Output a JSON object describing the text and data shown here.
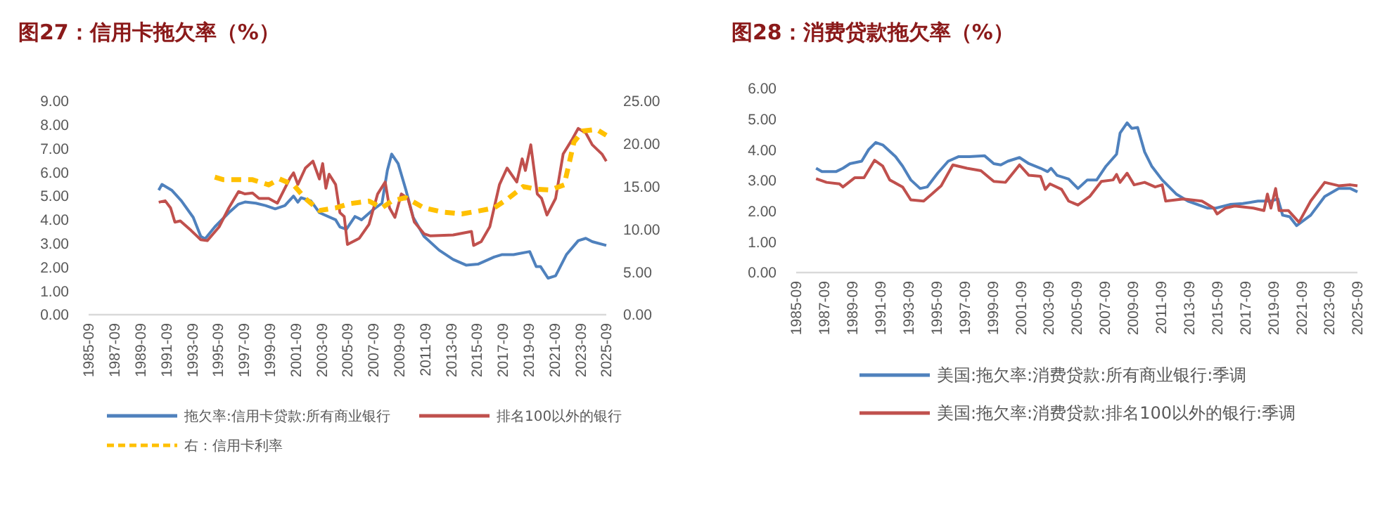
{
  "chart_data": [
    {
      "type": "line",
      "title": "图27：信用卡拖欠率（%）",
      "xlim": [
        "1985-09",
        "2025-09"
      ],
      "xticks": [
        "1985-09",
        "1987-09",
        "1989-09",
        "1991-09",
        "1993-09",
        "1995-09",
        "1997-09",
        "1999-09",
        "2001-09",
        "2003-09",
        "2005-09",
        "2007-09",
        "2009-09",
        "2011-09",
        "2013-09",
        "2015-09",
        "2017-09",
        "2019-09",
        "2021-09",
        "2023-09",
        "2025-09"
      ],
      "ylim": [
        0,
        9
      ],
      "yticks": [
        {
          "value": 0,
          "label": "0.00"
        },
        {
          "value": 1,
          "label": "1.00"
        },
        {
          "value": 2,
          "label": "2.00"
        },
        {
          "value": 3,
          "label": "3.00"
        },
        {
          "value": 4,
          "label": "4.00"
        },
        {
          "value": 5,
          "label": "5.00"
        },
        {
          "value": 6,
          "label": "6.00"
        },
        {
          "value": 7,
          "label": "7.00"
        },
        {
          "value": 8,
          "label": "8.00"
        },
        {
          "value": 9,
          "label": "9.00"
        }
      ],
      "y2lim": [
        0,
        25
      ],
      "y2ticks": [
        {
          "value": 0,
          "label": "0.00"
        },
        {
          "value": 5,
          "label": "5.00"
        },
        {
          "value": 10,
          "label": "10.00"
        },
        {
          "value": 15,
          "label": "15.00"
        },
        {
          "value": 20,
          "label": "20.00"
        },
        {
          "value": 25,
          "label": "25.00"
        }
      ],
      "grid": false,
      "legend": "bottom",
      "series": [
        {
          "name": "拖欠率:信用卡贷款:所有商业银行",
          "color": "#4f81bd",
          "x": [
            "1991-02",
            "1991-05",
            "1992-02",
            "1992-11",
            "1993-10",
            "1994-05",
            "1994-09",
            "1995-06",
            "1996-07",
            "1997-04",
            "1997-10",
            "1998-08",
            "1999-05",
            "2000-02",
            "2000-11",
            "2001-07",
            "2001-11",
            "2002-02",
            "2002-11",
            "2003-07",
            "2004-10",
            "2005-02",
            "2005-08",
            "2006-04",
            "2006-10",
            "2007-08",
            "2008-05",
            "2008-10",
            "2009-02",
            "2009-08",
            "2010-03",
            "2010-10",
            "2011-08",
            "2012-10",
            "2013-11",
            "2014-11",
            "2015-10",
            "2017-01",
            "2017-08",
            "2018-07",
            "2019-10",
            "2020-04",
            "2020-08",
            "2021-03",
            "2021-10",
            "2022-08",
            "2023-07",
            "2024-02",
            "2024-08",
            "2025-09"
          ],
          "values": [
            5.25,
            5.49,
            5.25,
            4.8,
            4.1,
            3.3,
            3.2,
            3.7,
            4.3,
            4.66,
            4.75,
            4.7,
            4.6,
            4.46,
            4.6,
            5.0,
            4.74,
            4.93,
            4.8,
            4.3,
            4.0,
            3.7,
            3.6,
            4.14,
            4.0,
            4.4,
            4.7,
            6.08,
            6.77,
            6.37,
            5.29,
            4.1,
            3.3,
            2.72,
            2.33,
            2.09,
            2.13,
            2.43,
            2.53,
            2.53,
            2.66,
            2.03,
            2.03,
            1.54,
            1.64,
            2.53,
            3.12,
            3.22,
            3.08,
            2.92
          ]
        },
        {
          "name": "排名100以外的银行",
          "color": "#c0504d",
          "x": [
            "1991-02",
            "1991-08",
            "1992-01",
            "1992-05",
            "1992-10",
            "1993-08",
            "1994-05",
            "1994-11",
            "1995-10",
            "1996-07",
            "1997-04",
            "1997-10",
            "1998-05",
            "1998-11",
            "1999-08",
            "2000-04",
            "2001-04",
            "2001-07",
            "2001-11",
            "2002-06",
            "2003-01",
            "2003-07",
            "2003-10",
            "2004-01",
            "2004-04",
            "2004-10",
            "2005-02",
            "2005-06",
            "2005-09",
            "2006-08",
            "2007-05",
            "2008-01",
            "2008-08",
            "2008-12",
            "2009-05",
            "2009-11",
            "2010-05",
            "2010-11",
            "2011-08",
            "2012-02",
            "2013-11",
            "2015-04",
            "2015-06",
            "2016-01",
            "2016-09",
            "2017-06",
            "2018-01",
            "2018-10",
            "2019-03",
            "2019-06",
            "2019-11",
            "2020-05",
            "2020-09",
            "2021-02",
            "2021-10",
            "2022-05",
            "2023-01",
            "2023-07",
            "2024-02",
            "2024-08",
            "2025-05",
            "2025-09"
          ],
          "values": [
            4.74,
            4.8,
            4.5,
            3.9,
            3.95,
            3.55,
            3.16,
            3.12,
            3.7,
            4.5,
            5.19,
            5.09,
            5.13,
            4.9,
            4.9,
            4.7,
            5.78,
            5.98,
            5.49,
            6.18,
            6.47,
            5.72,
            6.37,
            5.33,
            5.92,
            5.49,
            4.3,
            4.14,
            2.96,
            3.22,
            3.81,
            5.09,
            5.59,
            4.5,
            4.1,
            5.09,
            4.9,
            3.91,
            3.41,
            3.32,
            3.36,
            3.51,
            2.92,
            3.08,
            3.71,
            5.49,
            6.18,
            5.59,
            6.57,
            6.08,
            7.16,
            5.09,
            4.9,
            4.2,
            4.9,
            6.77,
            7.36,
            7.85,
            7.66,
            7.16,
            6.77,
            6.47
          ]
        },
        {
          "name": "右：信用卡利率",
          "color": "#ffc000",
          "axis": "y2",
          "line_style": "dashed",
          "x": [
            "1995-06",
            "1996-02",
            "1997-04",
            "1998-05",
            "1999-08",
            "2000-06",
            "2001-07",
            "2002-06",
            "2003-07",
            "2004-10",
            "2005-11",
            "2007-05",
            "2008-05",
            "2009-02",
            "2010-03",
            "2011-08",
            "2013-02",
            "2014-07",
            "2016-01",
            "2017-01",
            "2018-02",
            "2019-04",
            "2020-04",
            "2021-05",
            "2022-06",
            "2023-03",
            "2023-11",
            "2024-12",
            "2025-09"
          ],
          "values": [
            16.1,
            15.8,
            15.8,
            15.8,
            15.2,
            15.9,
            15.2,
            13.6,
            12.2,
            12.5,
            13.0,
            13.3,
            12.5,
            13.3,
            13.7,
            12.5,
            12.0,
            11.8,
            12.2,
            12.5,
            13.6,
            15.0,
            14.7,
            14.6,
            15.2,
            20.2,
            21.5,
            21.7,
            21.0
          ]
        }
      ]
    },
    {
      "type": "line",
      "title": "图28：消费贷款拖欠率（%）",
      "xlim": [
        "1985-09",
        "2025-09"
      ],
      "xticks": [
        "1985-09",
        "1987-09",
        "1989-09",
        "1991-09",
        "1993-09",
        "1995-09",
        "1997-09",
        "1999-09",
        "2001-09",
        "2003-09",
        "2005-09",
        "2007-09",
        "2009-09",
        "2011-09",
        "2013-09",
        "2015-09",
        "2017-09",
        "2019-09",
        "2021-09",
        "2023-09",
        "2025-09"
      ],
      "ylim": [
        0,
        6
      ],
      "yticks": [
        {
          "value": 0,
          "label": "0.00"
        },
        {
          "value": 1,
          "label": "1.00"
        },
        {
          "value": 2,
          "label": "2.00"
        },
        {
          "value": 3,
          "label": "3.00"
        },
        {
          "value": 4,
          "label": "4.00"
        },
        {
          "value": 5,
          "label": "5.00"
        },
        {
          "value": 6,
          "label": "6.00"
        }
      ],
      "grid": false,
      "legend": "bottom",
      "series": [
        {
          "name": "美国:拖欠率:消费贷款:所有商业银行:季调",
          "color": "#4f81bd",
          "x": [
            "1987-02",
            "1987-07",
            "1988-07",
            "1989-01",
            "1989-07",
            "1990-05",
            "1990-11",
            "1991-05",
            "1991-11",
            "1992-10",
            "1993-04",
            "1993-11",
            "1994-07",
            "1995-01",
            "1995-10",
            "1996-07",
            "1997-04",
            "1998-01",
            "1999-02",
            "1999-10",
            "2000-04",
            "2000-10",
            "2001-08",
            "2002-04",
            "2003-02",
            "2003-08",
            "2003-11",
            "2004-04",
            "2005-02",
            "2005-10",
            "2006-06",
            "2007-02",
            "2007-10",
            "2008-07",
            "2008-10",
            "2009-04",
            "2009-08",
            "2010-01",
            "2010-07",
            "2011-01",
            "2011-10",
            "2012-10",
            "2013-08",
            "2015-01",
            "2015-08",
            "2016-08",
            "2017-07",
            "2018-08",
            "2019-07",
            "2020-01",
            "2020-05",
            "2020-11",
            "2021-05",
            "2022-05",
            "2023-05",
            "2024-05",
            "2025-03",
            "2025-09"
          ],
          "values": [
            3.4,
            3.29,
            3.29,
            3.4,
            3.55,
            3.63,
            4.01,
            4.24,
            4.16,
            3.78,
            3.47,
            3.02,
            2.74,
            2.79,
            3.24,
            3.63,
            3.78,
            3.78,
            3.81,
            3.55,
            3.51,
            3.63,
            3.75,
            3.55,
            3.4,
            3.29,
            3.4,
            3.17,
            3.05,
            2.74,
            3.02,
            3.02,
            3.47,
            3.86,
            4.55,
            4.88,
            4.7,
            4.73,
            3.93,
            3.47,
            3.02,
            2.56,
            2.33,
            2.1,
            2.1,
            2.22,
            2.25,
            2.33,
            2.33,
            2.4,
            1.87,
            1.82,
            1.53,
            1.87,
            2.48,
            2.74,
            2.74,
            2.63
          ]
        },
        {
          "name": "美国:拖欠率:消费贷款:排名100以外的银行:季调",
          "color": "#c0504d",
          "x": [
            "1987-02",
            "1987-11",
            "1988-10",
            "1989-01",
            "1989-11",
            "1990-07",
            "1991-04",
            "1991-11",
            "1992-05",
            "1993-04",
            "1993-11",
            "1994-10",
            "1995-05",
            "1996-01",
            "1996-11",
            "1997-11",
            "1998-11",
            "1999-10",
            "2000-08",
            "2001-08",
            "2002-04",
            "2003-02",
            "2003-06",
            "2003-10",
            "2004-08",
            "2005-02",
            "2005-10",
            "2006-08",
            "2007-06",
            "2008-04",
            "2008-07",
            "2008-10",
            "2009-04",
            "2009-10",
            "2010-07",
            "2011-04",
            "2011-10",
            "2012-01",
            "2013-04",
            "2014-08",
            "2015-06",
            "2015-09",
            "2016-04",
            "2016-12",
            "2018-04",
            "2019-01",
            "2019-04",
            "2019-07",
            "2019-11",
            "2020-02",
            "2020-10",
            "2021-07",
            "2022-05",
            "2023-05",
            "2024-05",
            "2025-03",
            "2025-09"
          ],
          "values": [
            3.06,
            2.94,
            2.89,
            2.79,
            3.09,
            3.09,
            3.66,
            3.47,
            3.02,
            2.79,
            2.37,
            2.33,
            2.56,
            2.83,
            3.51,
            3.4,
            3.32,
            2.97,
            2.94,
            3.51,
            3.17,
            3.14,
            2.71,
            2.89,
            2.71,
            2.33,
            2.2,
            2.48,
            2.97,
            3.02,
            3.2,
            2.94,
            3.24,
            2.86,
            2.94,
            2.79,
            2.86,
            2.33,
            2.4,
            2.33,
            2.1,
            1.91,
            2.1,
            2.17,
            2.1,
            2.02,
            2.56,
            2.1,
            2.74,
            2.02,
            2.02,
            1.64,
            2.33,
            2.94,
            2.83,
            2.86,
            2.83
          ]
        }
      ]
    }
  ]
}
